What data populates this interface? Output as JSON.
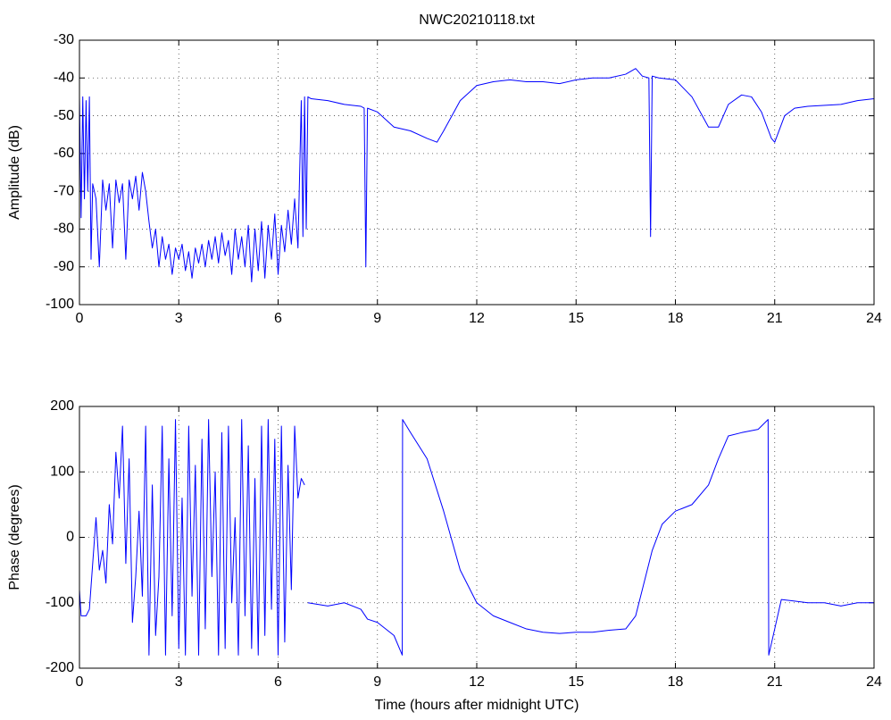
{
  "chart_data": [
    {
      "type": "line",
      "title": "NWC20210118.txt",
      "ylabel": "Amplitude (dB)",
      "color": "#0000ff",
      "grid": true,
      "xlim": [
        0,
        24
      ],
      "xticks": [
        0,
        3,
        6,
        9,
        12,
        15,
        18,
        21,
        24
      ],
      "ylim": [
        -100,
        -30
      ],
      "yticks": [
        -100,
        -90,
        -80,
        -70,
        -60,
        -50,
        -40,
        -30
      ],
      "x": [
        0,
        0.05,
        0.1,
        0.15,
        0.2,
        0.25,
        0.3,
        0.35,
        0.4,
        0.5,
        0.6,
        0.7,
        0.8,
        0.9,
        1.0,
        1.1,
        1.2,
        1.3,
        1.4,
        1.5,
        1.6,
        1.7,
        1.8,
        1.9,
        2.0,
        2.1,
        2.2,
        2.3,
        2.4,
        2.5,
        2.6,
        2.7,
        2.8,
        2.9,
        3.0,
        3.1,
        3.2,
        3.3,
        3.4,
        3.5,
        3.6,
        3.7,
        3.8,
        3.9,
        4.0,
        4.1,
        4.2,
        4.3,
        4.4,
        4.5,
        4.6,
        4.7,
        4.8,
        4.9,
        5.0,
        5.1,
        5.2,
        5.3,
        5.4,
        5.5,
        5.6,
        5.7,
        5.8,
        5.9,
        6.0,
        6.1,
        6.2,
        6.3,
        6.4,
        6.5,
        6.6,
        6.7,
        6.75,
        6.8,
        6.85,
        6.9,
        7.0,
        7.5,
        8.0,
        8.5,
        8.6,
        8.65,
        8.7,
        9.0,
        9.5,
        10.0,
        10.5,
        10.8,
        11.0,
        11.5,
        12.0,
        12.5,
        13.0,
        13.5,
        14.0,
        14.5,
        15.0,
        15.5,
        16.0,
        16.5,
        16.8,
        17.0,
        17.2,
        17.25,
        17.3,
        17.5,
        18.0,
        18.5,
        19.0,
        19.3,
        19.6,
        20.0,
        20.3,
        20.6,
        20.9,
        21.0,
        21.3,
        21.6,
        22.0,
        23.0,
        23.5,
        24.0
      ],
      "values": [
        -45,
        -77,
        -45,
        -72,
        -46,
        -70,
        -45,
        -88,
        -68,
        -72,
        -90,
        -67,
        -75,
        -68,
        -85,
        -67,
        -73,
        -68,
        -88,
        -67,
        -72,
        -66,
        -75,
        -65,
        -70,
        -78,
        -85,
        -80,
        -90,
        -82,
        -88,
        -84,
        -92,
        -85,
        -88,
        -84,
        -91,
        -86,
        -93,
        -85,
        -89,
        -84,
        -90,
        -83,
        -88,
        -82,
        -89,
        -81,
        -87,
        -83,
        -92,
        -80,
        -88,
        -82,
        -90,
        -79,
        -94,
        -80,
        -91,
        -78,
        -93,
        -79,
        -88,
        -76,
        -92,
        -79,
        -86,
        -75,
        -84,
        -72,
        -85,
        -46,
        -82,
        -45,
        -80,
        -45,
        -45.5,
        -46,
        -47,
        -47.5,
        -48,
        -90,
        -48,
        -49,
        -53,
        -54,
        -56,
        -57,
        -54,
        -46,
        -42,
        -41,
        -40.5,
        -41,
        -41,
        -41.5,
        -40.5,
        -40,
        -40,
        -39,
        -37.5,
        -39.5,
        -40,
        -82,
        -39.5,
        -40,
        -40.5,
        -45,
        -53,
        -53,
        -47,
        -44.5,
        -45,
        -49,
        -56,
        -57,
        -50,
        -48,
        -47.5,
        -47,
        -46,
        -45.5
      ]
    },
    {
      "type": "line",
      "ylabel": "Phase (degrees)",
      "xlabel": "Time (hours after midnight UTC)",
      "color": "#0000ff",
      "grid": true,
      "xlim": [
        0,
        24
      ],
      "xticks": [
        0,
        3,
        6,
        9,
        12,
        15,
        18,
        21,
        24
      ],
      "ylim": [
        -200,
        200
      ],
      "yticks": [
        -200,
        -100,
        0,
        100,
        200
      ],
      "x": [
        0,
        0.05,
        0.2,
        0.3,
        0.4,
        0.5,
        0.6,
        0.7,
        0.8,
        0.9,
        1.0,
        1.1,
        1.2,
        1.3,
        1.4,
        1.5,
        1.6,
        1.7,
        1.8,
        1.9,
        2.0,
        2.1,
        2.2,
        2.3,
        2.4,
        2.5,
        2.6,
        2.7,
        2.8,
        2.9,
        3.0,
        3.1,
        3.2,
        3.3,
        3.4,
        3.5,
        3.6,
        3.7,
        3.8,
        3.9,
        4.0,
        4.1,
        4.2,
        4.3,
        4.4,
        4.5,
        4.6,
        4.7,
        4.8,
        4.9,
        5.0,
        5.1,
        5.2,
        5.3,
        5.4,
        5.5,
        5.6,
        5.7,
        5.8,
        5.9,
        6.0,
        6.1,
        6.2,
        6.3,
        6.4,
        6.5,
        6.6,
        6.7,
        6.8,
        6.85,
        6.9,
        7.5,
        8.0,
        8.5,
        8.7,
        9.0,
        9.5,
        9.75,
        9.76,
        10.0,
        10.5,
        11.0,
        11.5,
        12.0,
        12.5,
        13.0,
        13.5,
        14.0,
        14.5,
        15.0,
        15.5,
        16.0,
        16.5,
        16.8,
        17.0,
        17.3,
        17.6,
        18.0,
        18.5,
        19.0,
        19.3,
        19.6,
        20.0,
        20.5,
        20.8,
        20.82,
        21.0,
        21.2,
        22.0,
        22.5,
        23.0,
        23.5,
        24.0
      ],
      "values": [
        -80,
        -120,
        -120,
        -110,
        -40,
        30,
        -50,
        -20,
        -70,
        50,
        -10,
        130,
        60,
        170,
        -40,
        120,
        -130,
        -60,
        40,
        -90,
        170,
        -180,
        80,
        -150,
        -60,
        170,
        -180,
        120,
        -120,
        180,
        -170,
        60,
        -180,
        170,
        -90,
        110,
        -180,
        150,
        -140,
        180,
        -60,
        100,
        -180,
        160,
        -170,
        170,
        -100,
        30,
        -180,
        180,
        -120,
        140,
        -170,
        90,
        -180,
        170,
        -150,
        180,
        -110,
        150,
        -180,
        170,
        -160,
        110,
        -80,
        170,
        60,
        90,
        80,
        null,
        -100,
        -105,
        -100,
        -110,
        -125,
        -130,
        -150,
        -180,
        180,
        160,
        120,
        40,
        -50,
        -100,
        -120,
        -130,
        -140,
        -145,
        -147,
        -145,
        -145,
        -142,
        -140,
        -120,
        -80,
        -20,
        20,
        40,
        50,
        80,
        120,
        155,
        160,
        165,
        180,
        -180,
        -140,
        -95,
        -100,
        -100,
        -105,
        -100,
        -100
      ]
    }
  ]
}
